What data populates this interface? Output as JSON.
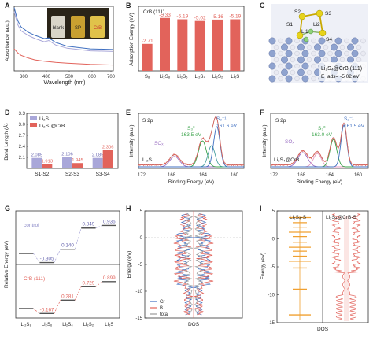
{
  "colors": {
    "bar_red": "#e2635b",
    "bar_purple": "#a9a7d9",
    "orange": "#f0a030",
    "blue": "#3f6fc0",
    "green": "#3aa34a",
    "sox_purple": "#9a6fc2",
    "dark_blue": "#5a7fb5",
    "light_red": "#f4b7b3",
    "axis": "#333333"
  },
  "panels": {
    "A": {
      "letter": "A",
      "xlabel": "Wavelength (nm)",
      "ylabel": "Absorbance (a.u.)",
      "xticks": [
        "300",
        "400",
        "500",
        "600",
        "700"
      ],
      "vials": [
        "blank",
        "SP",
        "CrB"
      ]
    },
    "B": {
      "letter": "B",
      "ylabel": "Adsorption Energy (eV)",
      "title": "CrB (111)"
    },
    "C": {
      "letter": "C",
      "atoms": [
        "S2",
        "S3",
        "S1",
        "Li2",
        "Li1",
        "S4"
      ],
      "caption_line1": "Li₂S₄@CrB (111)",
      "caption_line2": "E_ads= -5.02 eV"
    },
    "D": {
      "letter": "D",
      "ylabel": "Bond Length (Å)"
    },
    "E": {
      "letter": "E",
      "label": "S 2p",
      "ylabel": "Intensity (a.u.)",
      "xlabel": "Binding Energy (eV)",
      "sample": "Li₂S₄",
      "ann_s2_label": "S₂⁻¹",
      "ann_s2_value": "161.6 eV",
      "ann_s0_label": "S₃⁰",
      "ann_s0_value": "163.5 eV",
      "ann_sox": "SOₓ",
      "xticks": [
        "172",
        "168",
        "164",
        "160"
      ]
    },
    "F": {
      "letter": "F",
      "label": "S 2p",
      "ylabel": "Intensity (a.u.)",
      "xlabel": "Binding Energy (eV)",
      "sample": "Li₂S₄@CrB",
      "ann_s2_label": "S₂⁻¹",
      "ann_s2_value": "161.5 eV",
      "ann_s0_label": "S₃⁰",
      "ann_s0_value": "163.0 eV",
      "ann_sox": "SOₓ",
      "xticks": [
        "172",
        "168",
        "164",
        "160"
      ]
    },
    "G": {
      "letter": "G",
      "ylabel": "Relative Energy (eV)",
      "label_control": "control",
      "label_crb": "CrB (111)"
    },
    "H": {
      "letter": "H",
      "ylabel": "Energy (eV)",
      "xlabel": "DOS",
      "legend": [
        "Cr",
        "B",
        "total"
      ]
    },
    "I": {
      "letter": "I",
      "ylabel": "Energy (eV)",
      "xlabel": "DOS",
      "left_label": "Li₂S₄-S",
      "right_label": "Li₂S₄@CrB-S"
    }
  },
  "chart_data": [
    {
      "panel": "A",
      "type": "line",
      "xlabel": "Wavelength (nm)",
      "ylabel": "Absorbance (a.u.)",
      "xlim": [
        270,
        700
      ],
      "series": [
        {
          "name": "blank",
          "color": "#e2635b",
          "x": [
            270,
            285,
            300,
            330,
            360,
            400,
            450,
            500,
            600,
            700
          ],
          "y": [
            0.34,
            0.28,
            0.24,
            0.2,
            0.17,
            0.15,
            0.13,
            0.12,
            0.1,
            0.09
          ]
        },
        {
          "name": "SP",
          "color": "#3f6fc0",
          "x": [
            270,
            285,
            300,
            330,
            360,
            400,
            420,
            450,
            500,
            600,
            700
          ],
          "y": [
            0.98,
            0.78,
            0.68,
            0.6,
            0.55,
            0.5,
            0.51,
            0.44,
            0.38,
            0.34,
            0.33
          ]
        },
        {
          "name": "CrB",
          "color": "#a9a7d9",
          "x": [
            270,
            285,
            300,
            330,
            360,
            400,
            420,
            450,
            500,
            600,
            700
          ],
          "y": [
            0.92,
            0.72,
            0.62,
            0.55,
            0.5,
            0.45,
            0.47,
            0.4,
            0.35,
            0.31,
            0.3
          ]
        }
      ]
    },
    {
      "panel": "B",
      "type": "bar",
      "title": "CrB (111)",
      "ylabel": "Adsorption Energy (eV)",
      "categories": [
        "S₈",
        "Li₂S₈",
        "Li₂S₆",
        "Li₂S₄",
        "Li₂S₂",
        "Li₂S"
      ],
      "values": [
        -2.71,
        -5.33,
        -5.19,
        -5.02,
        -5.16,
        -5.19
      ],
      "value_labels": [
        "-2.71",
        "-5.33",
        "-5.19",
        "-5.02",
        "-5.16",
        "-5.19"
      ],
      "ylim": [
        0,
        -6.5
      ]
    },
    {
      "panel": "D",
      "type": "bar",
      "ylabel": "Bond Length (Å)",
      "categories": [
        "S1-S2",
        "S2-S3",
        "S3-S4"
      ],
      "yticks": [
        "2.1",
        "2.4",
        "2.7",
        "3.0",
        "3.3"
      ],
      "ylim": [
        1.8,
        3.3
      ],
      "series": [
        {
          "name": "Li₂S₄",
          "color": "#a9a7d9",
          "values": [
            2.085,
            2.106,
            2.085
          ],
          "labels": [
            "2.085",
            "2.106",
            "2.085"
          ]
        },
        {
          "name": "Li₂S₄@CrB",
          "color": "#e2635b",
          "values": [
            1.913,
            1.945,
            2.306
          ],
          "labels": [
            "1.913",
            "1.945",
            "2.306"
          ]
        }
      ]
    },
    {
      "panel": "G",
      "type": "line",
      "ylabel": "Relative Energy (eV)",
      "categories": [
        "Li₂S₈",
        "Li₂S₆",
        "Li₂S₄",
        "Li₂S₂",
        "Li₂S"
      ],
      "series": [
        {
          "name": "control",
          "color": "#a9a7d9",
          "values": [
            0,
            -0.305,
            0.14,
            0.849,
            0.936
          ],
          "labels": [
            "",
            "-0.305",
            "0.140",
            "0.849",
            "0.936"
          ]
        },
        {
          "name": "CrB (111)",
          "color": "#e2635b",
          "values": [
            0,
            -0.167,
            0.281,
            0.729,
            0.899
          ],
          "labels": [
            "",
            "-0.167",
            "0.281",
            "0.729",
            "0.899"
          ]
        }
      ]
    },
    {
      "panel": "H",
      "type": "line",
      "ylabel": "Energy (eV)",
      "xlabel": "DOS",
      "ylim": [
        -15,
        5
      ],
      "yticks": [
        "5",
        "0",
        "-5",
        "-10",
        "-15"
      ],
      "series": [
        {
          "name": "Cr",
          "color": "#3f6fc0"
        },
        {
          "name": "B",
          "color": "#e2635b"
        },
        {
          "name": "total",
          "color": "#9a9a9a"
        }
      ]
    },
    {
      "panel": "I",
      "type": "line",
      "ylabel": "Energy (eV)",
      "xlabel": "DOS",
      "ylim": [
        -15,
        5
      ],
      "yticks": [
        "5",
        "0",
        "-5",
        "-10",
        "-15"
      ],
      "series": [
        {
          "name": "Li₂S₄-S",
          "color": "#f0a030"
        },
        {
          "name": "Li₂S₄@CrB-S",
          "color": "#e2635b"
        }
      ]
    }
  ]
}
